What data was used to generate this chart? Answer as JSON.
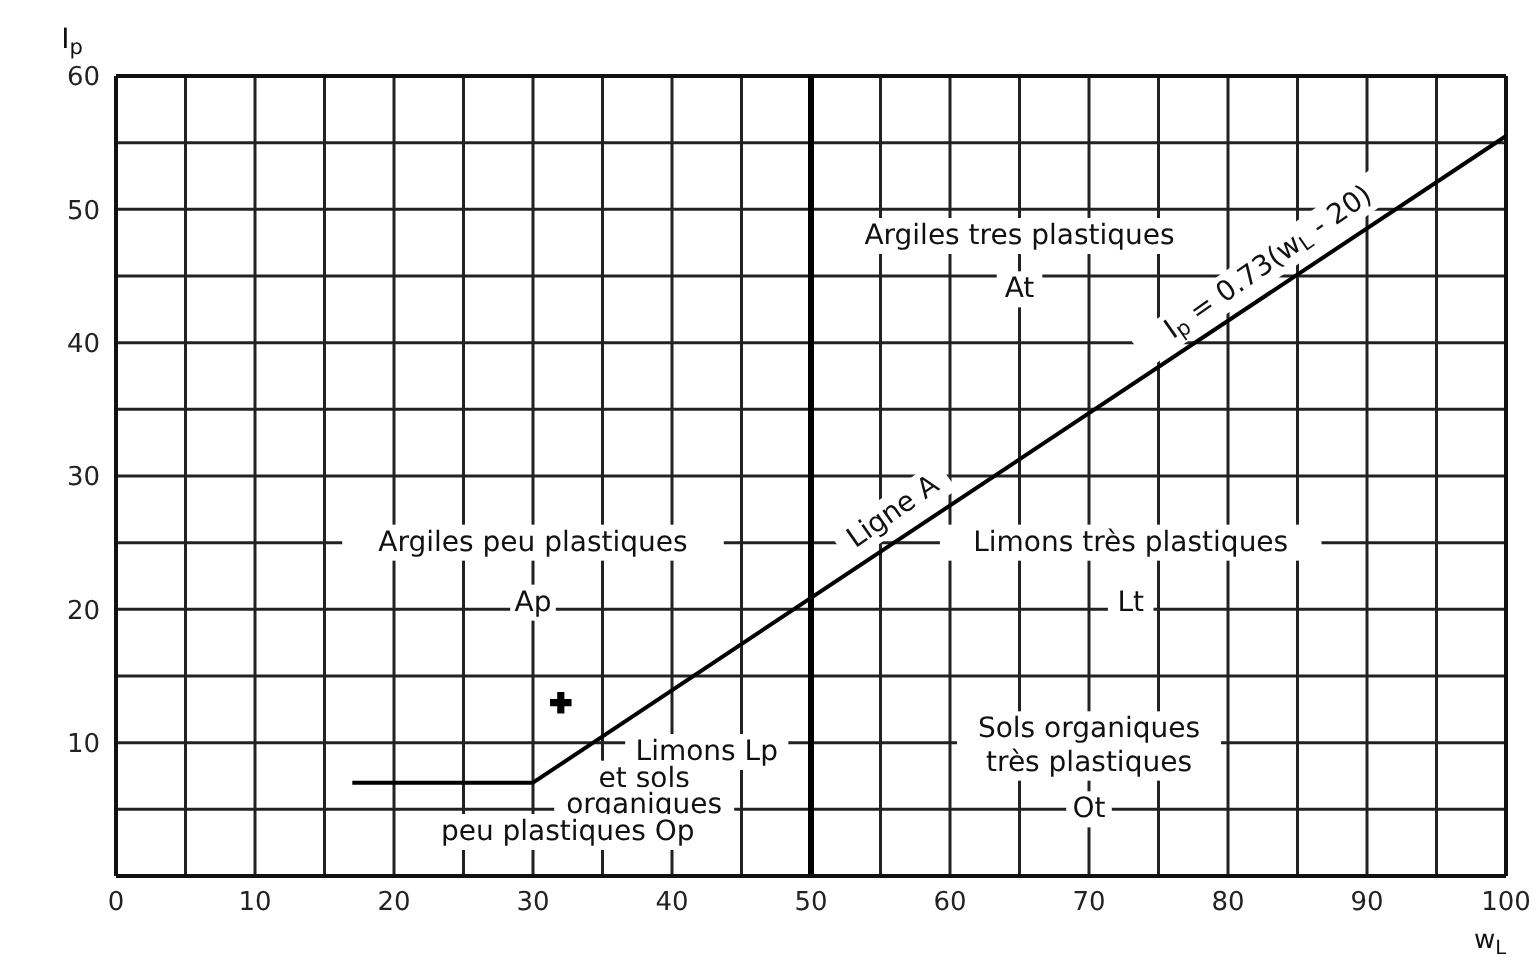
{
  "chart_data": {
    "type": "line",
    "xlabel": "w$_{L}$",
    "ylabel": "I$_{p}$",
    "xlim": [
      0,
      100
    ],
    "ylim": [
      0,
      60
    ],
    "xticks": [
      0,
      {
        "value": 5,
        "label": null
      },
      10,
      {
        "value": 15,
        "label": null
      },
      20,
      {
        "value": 25,
        "label": null
      },
      30,
      {
        "value": 35,
        "label": null
      },
      40,
      {
        "value": 45,
        "label": null
      },
      50,
      {
        "value": 55,
        "label": null
      },
      60,
      {
        "value": 65,
        "label": null
      },
      70,
      {
        "value": 75,
        "label": null
      },
      80,
      {
        "value": 85,
        "label": null
      },
      90,
      {
        "value": 95,
        "label": null
      },
      100
    ],
    "yticks": [
      {
        "value": 0,
        "label": null
      },
      {
        "value": 5,
        "label": null
      },
      10,
      {
        "value": 15,
        "label": null
      },
      20,
      {
        "value": 25,
        "label": null
      },
      30,
      {
        "value": 35,
        "label": null
      },
      40,
      {
        "value": 45,
        "label": null
      },
      50,
      {
        "value": 55,
        "label": null
      },
      60
    ],
    "grid": true,
    "series": [
      {
        "x": [
          17,
          30,
          100
        ],
        "values": [
          7,
          7,
          55.5
        ],
        "color": "#000000",
        "marker": "none",
        "line_style": "solid"
      },
      {
        "type": "scatter",
        "x": [
          32
        ],
        "values": [
          13
        ],
        "color": "#000000",
        "marker": "cross"
      }
    ],
    "ref_lines": [
      {
        "axis": "x",
        "value": 50,
        "color": "#000000"
      }
    ],
    "annotations": [
      "Argiles peu plastiques",
      "Ap",
      "Limons Lp",
      "et sols",
      "organiques",
      "peu plastiques Op",
      "Argiles tres plastiques",
      "At",
      "Ligne A",
      "I$_{p}$ = 0.73(w$_{L}$ - 20)",
      "Limons très plastiques",
      "Lt",
      "Sols organiques",
      "très plastiques",
      "Ot"
    ]
  }
}
